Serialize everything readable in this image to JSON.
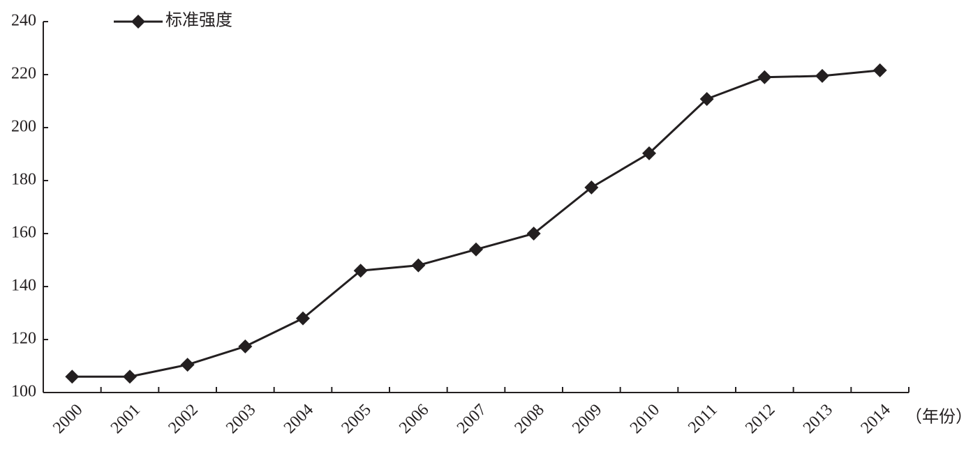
{
  "chart_data": {
    "type": "line",
    "categories": [
      "2000",
      "2001",
      "2002",
      "2003",
      "2004",
      "2005",
      "2006",
      "2007",
      "2008",
      "2009",
      "2010",
      "2011",
      "2012",
      "2013",
      "2014"
    ],
    "series": [
      {
        "name": "标准强度",
        "color": "#231f20",
        "values": [
          106,
          106,
          110.5,
          117.4,
          128,
          146,
          148,
          154,
          160,
          177.4,
          190.3,
          210.8,
          219,
          219.5,
          221.6
        ]
      }
    ],
    "x_label": "（年份）",
    "ylim": [
      100,
      240
    ],
    "yticks": [
      100,
      120,
      140,
      160,
      180,
      200,
      220,
      240
    ],
    "grid": false,
    "legend": "top-left"
  }
}
